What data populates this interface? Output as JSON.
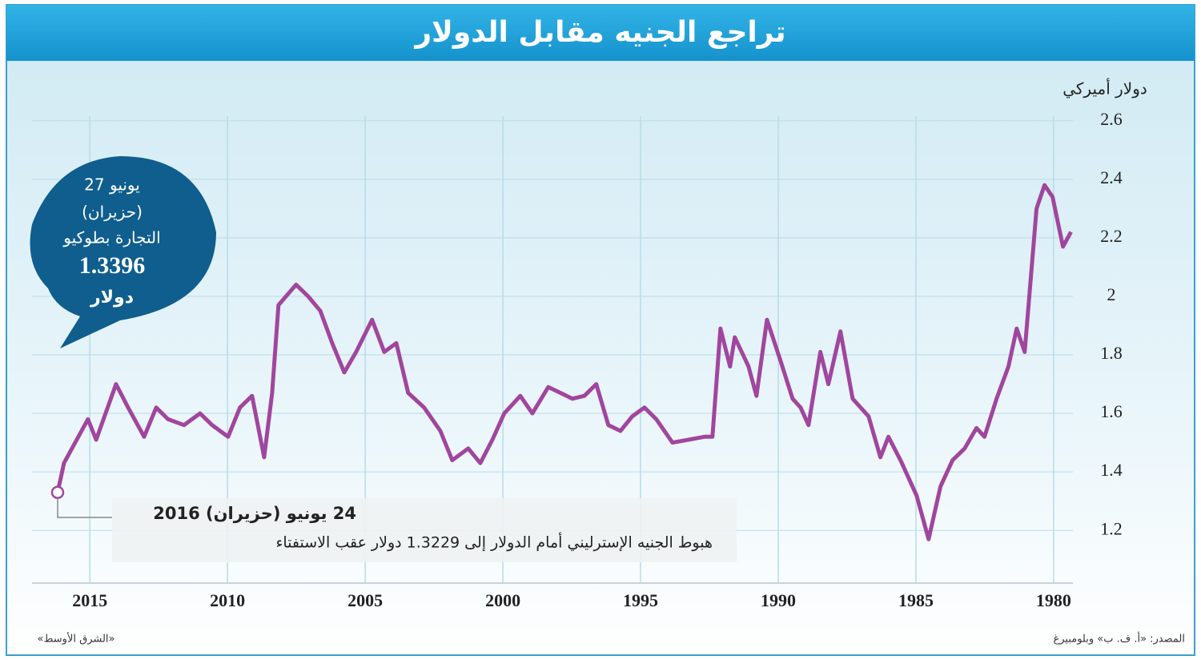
{
  "chart_data": {
    "type": "line",
    "title": "تراجع الجنيه مقابل الدولار",
    "y_label": "دولار أميركي",
    "bubble": [
      "27 يونيو",
      "(حزيران)",
      "التجارة بطوكيو",
      "1.3396",
      "دولار"
    ],
    "callout": [
      "24 يونيو (حزيران) 2016",
      "هبوط الجنيه الإسترليني أمام الدولار إلى 1.3229 دولار عقب الاستفتاء"
    ],
    "credit": "«الشرق الأوسط»",
    "source": "المصدر: «أ. ف. ب» وبلومبيرغ",
    "color": "#a0469e",
    "grid": true,
    "xlim": [
      2017.1,
      1979.3
    ],
    "ylim": [
      1.02,
      2.78
    ],
    "xticks": [
      2015,
      2010,
      2005,
      2000,
      1995,
      1990,
      1985,
      1980
    ],
    "yticks": [
      1.2,
      1.4,
      1.6,
      1.8,
      2.0,
      2.2,
      2.4,
      2.6
    ],
    "x": [
      2016.17,
      2015.94,
      2015.07,
      2014.77,
      2014.05,
      2013.61,
      2013.03,
      2012.59,
      2012.16,
      2011.58,
      2011.0,
      2010.56,
      2009.98,
      2009.55,
      2009.11,
      2008.67,
      2008.38,
      2008.15,
      2007.51,
      2007.07,
      2006.63,
      2006.2,
      2005.76,
      2005.33,
      2004.75,
      2004.31,
      2003.87,
      2003.44,
      2002.86,
      2002.27,
      2001.84,
      2001.26,
      2000.82,
      2000.38,
      1999.95,
      1999.37,
      1998.93,
      1998.35,
      1997.91,
      1997.48,
      1997.04,
      1996.61,
      1996.17,
      1995.73,
      1995.3,
      1994.86,
      1994.43,
      1993.84,
      1993.26,
      1992.68,
      1992.39,
      1992.1,
      1991.75,
      1991.58,
      1991.08,
      1990.79,
      1990.41,
      1989.92,
      1989.48,
      1989.19,
      1988.9,
      1988.47,
      1988.18,
      1987.74,
      1987.3,
      1986.72,
      1986.29,
      1986.0,
      1985.56,
      1984.98,
      1984.54,
      1984.11,
      1983.67,
      1983.23,
      1982.8,
      1982.51,
      1982.07,
      1981.64,
      1981.34,
      1981.05,
      1980.62,
      1980.33,
      1980.04,
      1979.66,
      1979.37
    ],
    "values": [
      1.33,
      1.43,
      1.58,
      1.51,
      1.7,
      1.62,
      1.52,
      1.62,
      1.58,
      1.56,
      1.6,
      1.56,
      1.52,
      1.62,
      1.66,
      1.45,
      1.67,
      1.97,
      2.04,
      2.0,
      1.95,
      1.84,
      1.74,
      1.81,
      1.92,
      1.81,
      1.84,
      1.67,
      1.62,
      1.54,
      1.44,
      1.48,
      1.43,
      1.51,
      1.6,
      1.66,
      1.6,
      1.69,
      1.67,
      1.65,
      1.66,
      1.7,
      1.56,
      1.54,
      1.59,
      1.62,
      1.58,
      1.5,
      1.51,
      1.52,
      1.52,
      1.89,
      1.76,
      1.86,
      1.76,
      1.66,
      1.92,
      1.78,
      1.65,
      1.62,
      1.56,
      1.81,
      1.7,
      1.88,
      1.65,
      1.59,
      1.45,
      1.52,
      1.44,
      1.32,
      1.17,
      1.35,
      1.44,
      1.48,
      1.55,
      1.52,
      1.65,
      1.76,
      1.89,
      1.81,
      2.3,
      2.38,
      2.34,
      2.17,
      2.22
    ]
  }
}
